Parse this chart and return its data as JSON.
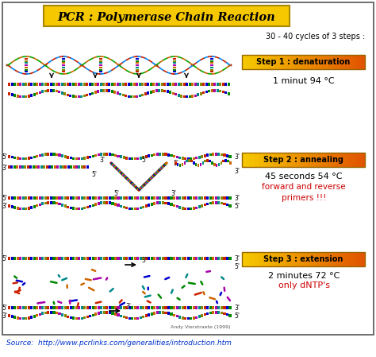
{
  "title": "PCR : Polymerase Chain Reaction",
  "title_bg": "#F5C800",
  "subtitle": "30 - 40 cycles of 3 steps :",
  "step1_label": "Step 1 : denaturation",
  "step1_desc1": "1 minut 94 °C",
  "step2_label": "Step 2 : annealing",
  "step2_desc1": "45 seconds 54 °C",
  "step2_desc2": "forward and reverse\nprimers !!!",
  "step3_label": "Step 3 : extension",
  "step3_desc1": "2 minutes 72 °C",
  "step3_desc2": "only dNTP's",
  "source_text": "Source:  http://www.pcrlinks.com/generalities/introduction.htm",
  "step_bg_left": "#F5C800",
  "step_bg_right": "#E05000",
  "bg_color": "#FFFFFF",
  "border_color": "#555555",
  "red_text": "#CC0000",
  "black_text": "#000000",
  "dna_colors": [
    "#CC2200",
    "#0000CC",
    "#008800",
    "#CC6600",
    "#AA00AA",
    "#008888",
    "#888800"
  ],
  "copyright": "Andy Vierstraete (1999)"
}
